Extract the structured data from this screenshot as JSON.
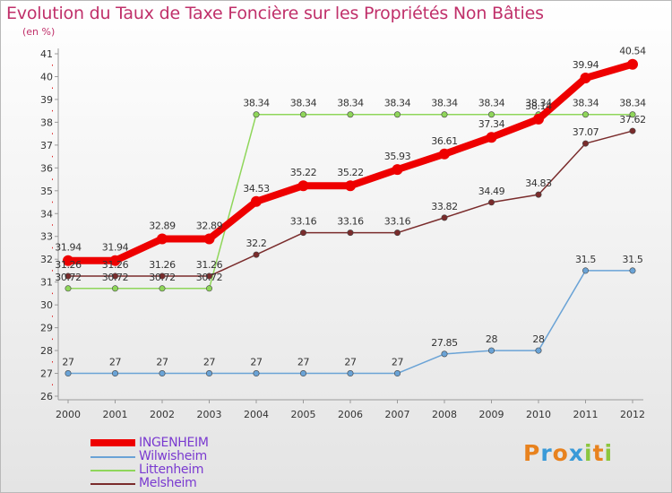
{
  "title": "Evolution du Taux de Taxe Foncière sur les Propriétés Non Bâties",
  "unit_label": "(en %)",
  "logo": {
    "letters": [
      "P",
      "r",
      "o",
      "x",
      "i",
      "t",
      "i"
    ],
    "colors": [
      "#e8821e",
      "#3a9ad8",
      "#e8821e",
      "#3a9ad8",
      "#8cc63e",
      "#e8821e",
      "#8cc63e"
    ]
  },
  "chart_data": {
    "type": "line",
    "x": [
      "2000",
      "2001",
      "2002",
      "2003",
      "2004",
      "2005",
      "2006",
      "2007",
      "2008",
      "2009",
      "2010",
      "2011",
      "2012"
    ],
    "ylim": [
      26,
      41
    ],
    "yticks": [
      "26",
      "27",
      "28",
      "29",
      "30",
      "31",
      "32",
      "33",
      "34",
      "35",
      "36",
      "37",
      "38",
      "39",
      "40",
      "41"
    ],
    "grid": false,
    "legend_position": "bottom-left",
    "series": [
      {
        "name": "INGENHEIM",
        "color": "#ee0000",
        "width": 8,
        "values": [
          31.94,
          31.94,
          32.89,
          32.89,
          34.53,
          35.22,
          35.22,
          35.93,
          36.61,
          37.34,
          38.14,
          39.94,
          40.54
        ],
        "labels": [
          "31.94",
          "31.94",
          "32.89",
          "32.89",
          "34.53",
          "35.22",
          "35.22",
          "35.93",
          "36.61",
          "37.34",
          "38.14",
          "39.94",
          "40.54"
        ]
      },
      {
        "name": "Wilwisheim",
        "color": "#6aa3d6",
        "width": 1.5,
        "values": [
          27,
          27,
          27,
          27,
          27,
          27,
          27,
          27,
          27.85,
          28,
          28,
          31.5,
          31.5
        ],
        "labels": [
          "27",
          "27",
          "27",
          "27",
          "27",
          "27",
          "27",
          "27",
          "27.85",
          "28",
          "28",
          "31.5",
          "31.5"
        ]
      },
      {
        "name": "Littenheim",
        "color": "#8fd65a",
        "width": 1.5,
        "values": [
          30.72,
          30.72,
          30.72,
          30.72,
          38.34,
          38.34,
          38.34,
          38.34,
          38.34,
          38.34,
          38.34,
          38.34,
          38.34
        ],
        "labels": [
          "30.72",
          "30.72",
          "30.72",
          "30.72",
          "38.34",
          "38.34",
          "38.34",
          "38.34",
          "38.34",
          "38.34",
          "38.34",
          "38.34",
          "38.34"
        ]
      },
      {
        "name": "Melsheim",
        "color": "#7a2c2c",
        "width": 1.5,
        "values": [
          31.26,
          31.26,
          31.26,
          31.26,
          32.2,
          33.16,
          33.16,
          33.16,
          33.82,
          34.49,
          34.83,
          37.07,
          37.62
        ],
        "labels": [
          "31.26",
          "31.26",
          "31.26",
          "31.26",
          "32.2",
          "33.16",
          "33.16",
          "33.16",
          "33.82",
          "34.49",
          "34.83",
          "37.07",
          "37.62"
        ]
      }
    ]
  }
}
